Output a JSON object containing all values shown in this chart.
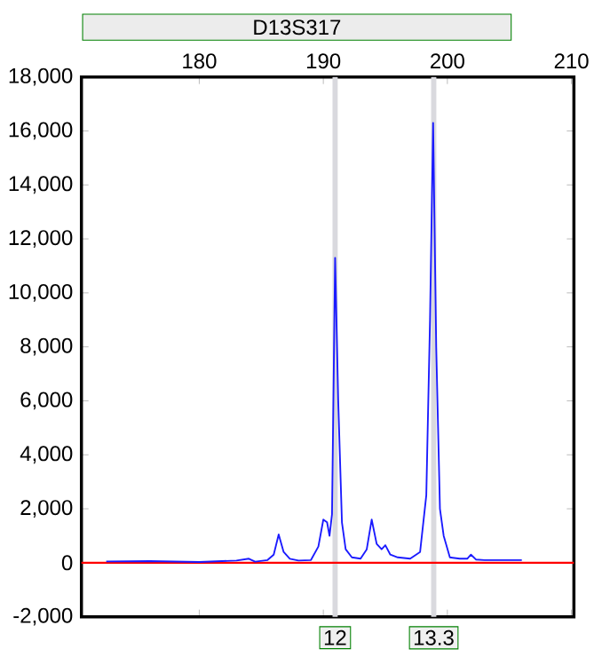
{
  "chart_data": {
    "type": "line",
    "title": "D13S317",
    "xlim": [
      170.5,
      210.2
    ],
    "xticks": [
      180,
      190,
      200,
      210
    ],
    "ylim": [
      -2000,
      18000
    ],
    "yticks": [
      {
        "value": -2000,
        "label": "-2,000"
      },
      0,
      {
        "value": 2000,
        "label": "2,000"
      },
      {
        "value": 4000,
        "label": "4,000"
      },
      {
        "value": 6000,
        "label": "6,000"
      },
      {
        "value": 8000,
        "label": "8,000"
      },
      {
        "value": 10000,
        "label": "10,000"
      },
      {
        "value": 12000,
        "label": "12,000"
      },
      {
        "value": 14000,
        "label": "14,000"
      },
      {
        "value": 16000,
        "label": "16,000"
      },
      {
        "value": 18000,
        "label": "18,000"
      }
    ],
    "grid": false,
    "marker": "none",
    "line_style": "solid",
    "series": [
      {
        "color": "#1a1aff",
        "x": [
          172.5,
          176,
          180,
          183,
          184,
          184.5,
          185.5,
          186,
          186.4,
          186.8,
          187.3,
          188,
          189,
          189.6,
          190.0,
          190.3,
          190.5,
          190.7,
          190.95,
          191.2,
          191.5,
          191.8,
          192.3,
          193.0,
          193.5,
          193.9,
          194.3,
          194.7,
          195.0,
          195.4,
          196,
          197,
          197.8,
          198.3,
          198.6,
          198.85,
          199.1,
          199.4,
          199.7,
          200.2,
          201,
          201.6,
          201.9,
          202.3,
          203,
          204.5,
          206
        ],
        "values": [
          50,
          60,
          30,
          80,
          150,
          40,
          100,
          300,
          1050,
          400,
          150,
          80,
          100,
          600,
          1600,
          1500,
          1000,
          1800,
          11300,
          6000,
          1500,
          500,
          200,
          150,
          500,
          1600,
          700,
          500,
          650,
          300,
          200,
          150,
          400,
          2500,
          9000,
          16300,
          8000,
          2000,
          1000,
          200,
          150,
          150,
          300,
          120,
          100,
          100,
          100
        ]
      }
    ],
    "ref_lines": [
      {
        "axis": "x",
        "value": 190.95,
        "color": "#d9d9de"
      },
      {
        "axis": "x",
        "value": 198.9,
        "color": "#d9d9de"
      },
      {
        "axis": "y",
        "value": 0,
        "color": "#ff0000"
      }
    ],
    "annotations": [
      {
        "text": "12",
        "x": 190.95,
        "y": -2000
      },
      {
        "text": "13.3",
        "x": 198.9,
        "y": -2000
      }
    ]
  }
}
